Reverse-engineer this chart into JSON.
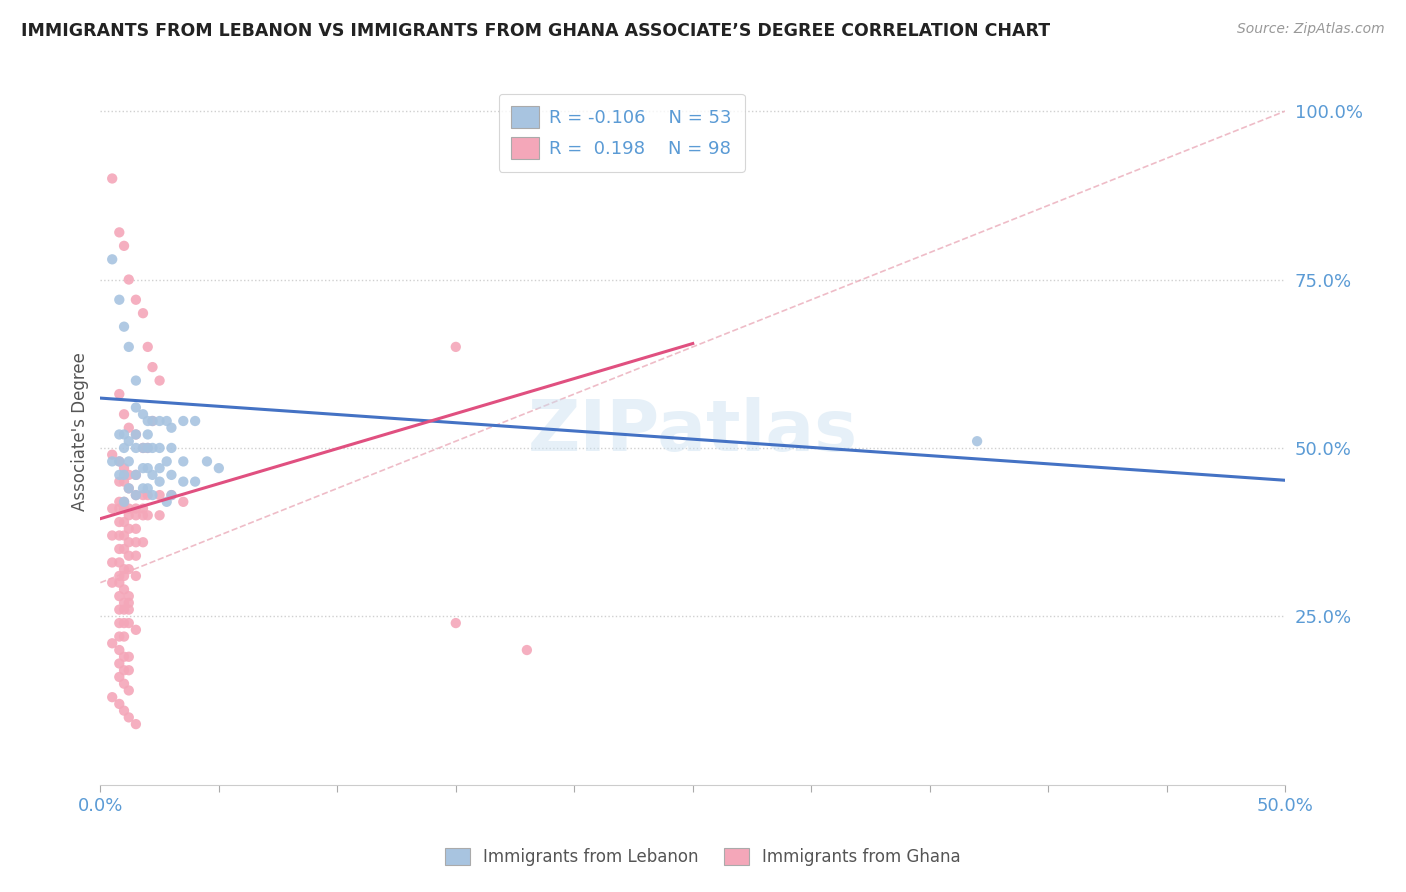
{
  "title": "IMMIGRANTS FROM LEBANON VS IMMIGRANTS FROM GHANA ASSOCIATE’S DEGREE CORRELATION CHART",
  "source_text": "Source: ZipAtlas.com",
  "ylabel": "Associate's Degree",
  "xlim": [
    0.0,
    0.5
  ],
  "ylim": [
    0.0,
    1.05
  ],
  "color_lebanon": "#a8c4e0",
  "color_ghana": "#f4a7b9",
  "line_color_lebanon": "#4472c4",
  "line_color_ghana": "#e05080",
  "watermark": "ZIPatlas",
  "lebanon_line": [
    0.0,
    0.574,
    0.5,
    0.452
  ],
  "ghana_line": [
    0.0,
    0.395,
    0.25,
    0.655
  ],
  "ref_line": [
    0.0,
    0.3,
    0.5,
    1.0
  ],
  "lebanon_scatter_x": [
    0.005,
    0.008,
    0.01,
    0.012,
    0.015,
    0.018,
    0.02,
    0.025,
    0.03,
    0.022,
    0.035,
    0.028,
    0.04,
    0.015,
    0.01,
    0.008,
    0.012,
    0.018,
    0.022,
    0.03,
    0.025,
    0.015,
    0.01,
    0.02,
    0.005,
    0.008,
    0.012,
    0.035,
    0.028,
    0.045,
    0.05,
    0.02,
    0.018,
    0.025,
    0.03,
    0.015,
    0.022,
    0.01,
    0.008,
    0.035,
    0.04,
    0.025,
    0.018,
    0.012,
    0.02,
    0.015,
    0.03,
    0.022,
    0.028,
    0.01,
    0.015,
    0.02,
    0.37
  ],
  "lebanon_scatter_y": [
    0.78,
    0.72,
    0.68,
    0.65,
    0.6,
    0.55,
    0.52,
    0.54,
    0.53,
    0.54,
    0.54,
    0.54,
    0.54,
    0.52,
    0.52,
    0.52,
    0.51,
    0.5,
    0.5,
    0.5,
    0.5,
    0.5,
    0.5,
    0.5,
    0.48,
    0.48,
    0.48,
    0.48,
    0.48,
    0.48,
    0.47,
    0.47,
    0.47,
    0.47,
    0.46,
    0.46,
    0.46,
    0.46,
    0.46,
    0.45,
    0.45,
    0.45,
    0.44,
    0.44,
    0.44,
    0.43,
    0.43,
    0.43,
    0.42,
    0.42,
    0.56,
    0.54,
    0.51
  ],
  "ghana_scatter_x": [
    0.005,
    0.008,
    0.01,
    0.012,
    0.015,
    0.018,
    0.02,
    0.022,
    0.025,
    0.008,
    0.01,
    0.012,
    0.015,
    0.018,
    0.02,
    0.005,
    0.008,
    0.01,
    0.012,
    0.015,
    0.008,
    0.01,
    0.012,
    0.015,
    0.018,
    0.02,
    0.025,
    0.03,
    0.008,
    0.01,
    0.012,
    0.015,
    0.018,
    0.005,
    0.008,
    0.01,
    0.012,
    0.015,
    0.018,
    0.02,
    0.025,
    0.008,
    0.01,
    0.012,
    0.015,
    0.005,
    0.008,
    0.01,
    0.012,
    0.015,
    0.018,
    0.008,
    0.01,
    0.012,
    0.015,
    0.005,
    0.008,
    0.01,
    0.012,
    0.008,
    0.01,
    0.015,
    0.005,
    0.008,
    0.01,
    0.012,
    0.008,
    0.01,
    0.012,
    0.022,
    0.008,
    0.01,
    0.012,
    0.15,
    0.008,
    0.01,
    0.012,
    0.015,
    0.008,
    0.01,
    0.035,
    0.005,
    0.008,
    0.01,
    0.012,
    0.15,
    0.008,
    0.01,
    0.012,
    0.008,
    0.01,
    0.012,
    0.005,
    0.008,
    0.01,
    0.012,
    0.015,
    0.18
  ],
  "ghana_scatter_y": [
    0.9,
    0.82,
    0.8,
    0.75,
    0.72,
    0.7,
    0.65,
    0.62,
    0.6,
    0.58,
    0.55,
    0.53,
    0.52,
    0.5,
    0.5,
    0.49,
    0.48,
    0.47,
    0.46,
    0.46,
    0.45,
    0.45,
    0.44,
    0.43,
    0.43,
    0.43,
    0.43,
    0.43,
    0.42,
    0.42,
    0.41,
    0.41,
    0.41,
    0.41,
    0.41,
    0.41,
    0.4,
    0.4,
    0.4,
    0.4,
    0.4,
    0.39,
    0.39,
    0.38,
    0.38,
    0.37,
    0.37,
    0.37,
    0.36,
    0.36,
    0.36,
    0.35,
    0.35,
    0.34,
    0.34,
    0.33,
    0.33,
    0.32,
    0.32,
    0.31,
    0.31,
    0.31,
    0.3,
    0.3,
    0.29,
    0.28,
    0.28,
    0.27,
    0.27,
    0.54,
    0.26,
    0.26,
    0.26,
    0.65,
    0.24,
    0.24,
    0.24,
    0.23,
    0.22,
    0.22,
    0.42,
    0.21,
    0.2,
    0.19,
    0.19,
    0.24,
    0.18,
    0.17,
    0.17,
    0.16,
    0.15,
    0.14,
    0.13,
    0.12,
    0.11,
    0.1,
    0.09,
    0.2
  ]
}
